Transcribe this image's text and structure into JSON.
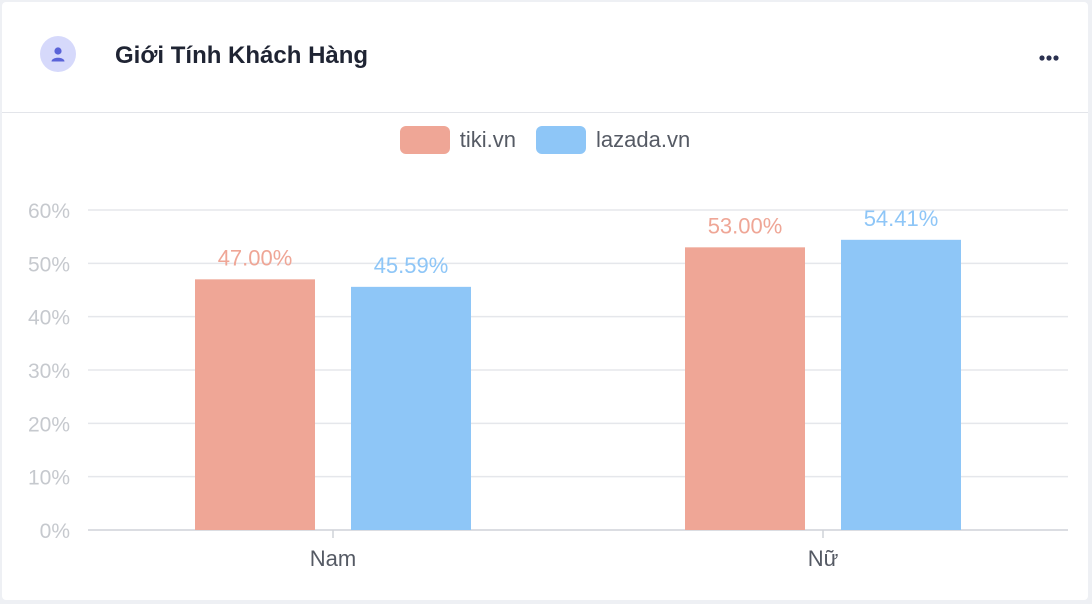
{
  "card": {
    "title": "Giới Tính Khách Hàng",
    "header_icon": "user-icon",
    "menu_icon": "more-horizontal-icon"
  },
  "colors": {
    "tiki": "#efa696",
    "lazada": "#8ec6f7",
    "title": "#1f2433",
    "axis_text": "#c6c9ce",
    "grid": "#e5e7eb",
    "avatar_bg": "#d6d9fb",
    "avatar_fg": "#5a63d8"
  },
  "chart_data": {
    "type": "bar",
    "categories": [
      "Nam",
      "Nữ"
    ],
    "series": [
      {
        "name": "tiki.vn",
        "values": [
          47.0,
          53.0
        ],
        "labels": [
          "47.00%",
          "53.00%"
        ],
        "color": "#efa696"
      },
      {
        "name": "lazada.vn",
        "values": [
          45.59,
          54.41
        ],
        "labels": [
          "45.59%",
          "54.41%"
        ],
        "color": "#8ec6f7"
      }
    ],
    "ylim": [
      0,
      60
    ],
    "yticks": [
      "0%",
      "10%",
      "20%",
      "30%",
      "40%",
      "50%",
      "60%"
    ],
    "grid": true,
    "legend": "top-center",
    "xlabel": "",
    "ylabel": ""
  }
}
